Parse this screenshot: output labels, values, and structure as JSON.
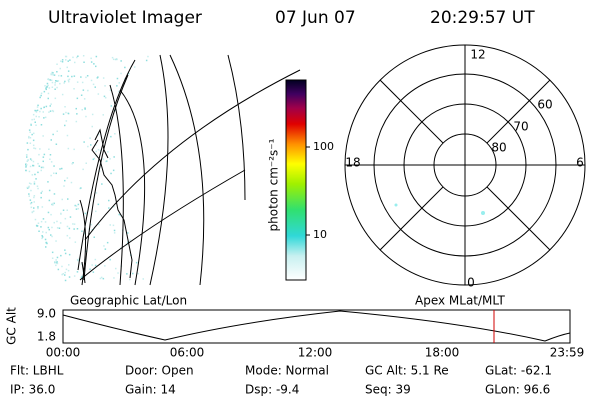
{
  "header": {
    "title": "Ultraviolet Imager",
    "date": "07 Jun 07",
    "time": "20:29:57 UT"
  },
  "colorbar": {
    "label": "photon cm⁻²s⁻¹",
    "ticks": [
      "100",
      "10"
    ]
  },
  "polar": {
    "mlt_labels": [
      "12",
      "18",
      "6",
      "0"
    ],
    "lat_labels": [
      "60",
      "70",
      "80"
    ]
  },
  "panels": {
    "left_label": "Geographic Lat/Lon",
    "right_label": "Apex MLat/MLT"
  },
  "altplot": {
    "ylabel": "GC Alt",
    "yticks": [
      "9.0",
      "1.8"
    ],
    "xticks": [
      "00:00",
      "06:00",
      "12:00",
      "18:00",
      "23:59"
    ]
  },
  "footer": {
    "rows": [
      [
        "Flt: LBHL",
        "Door: Open",
        "Mode: Normal",
        "GC Alt: 5.1 Re",
        "GLat: -62.1"
      ],
      [
        "IP: 36.0",
        "Gain: 14",
        "Dsp: -9.4",
        "Seq: 39",
        "GLon: 96.6"
      ]
    ]
  }
}
